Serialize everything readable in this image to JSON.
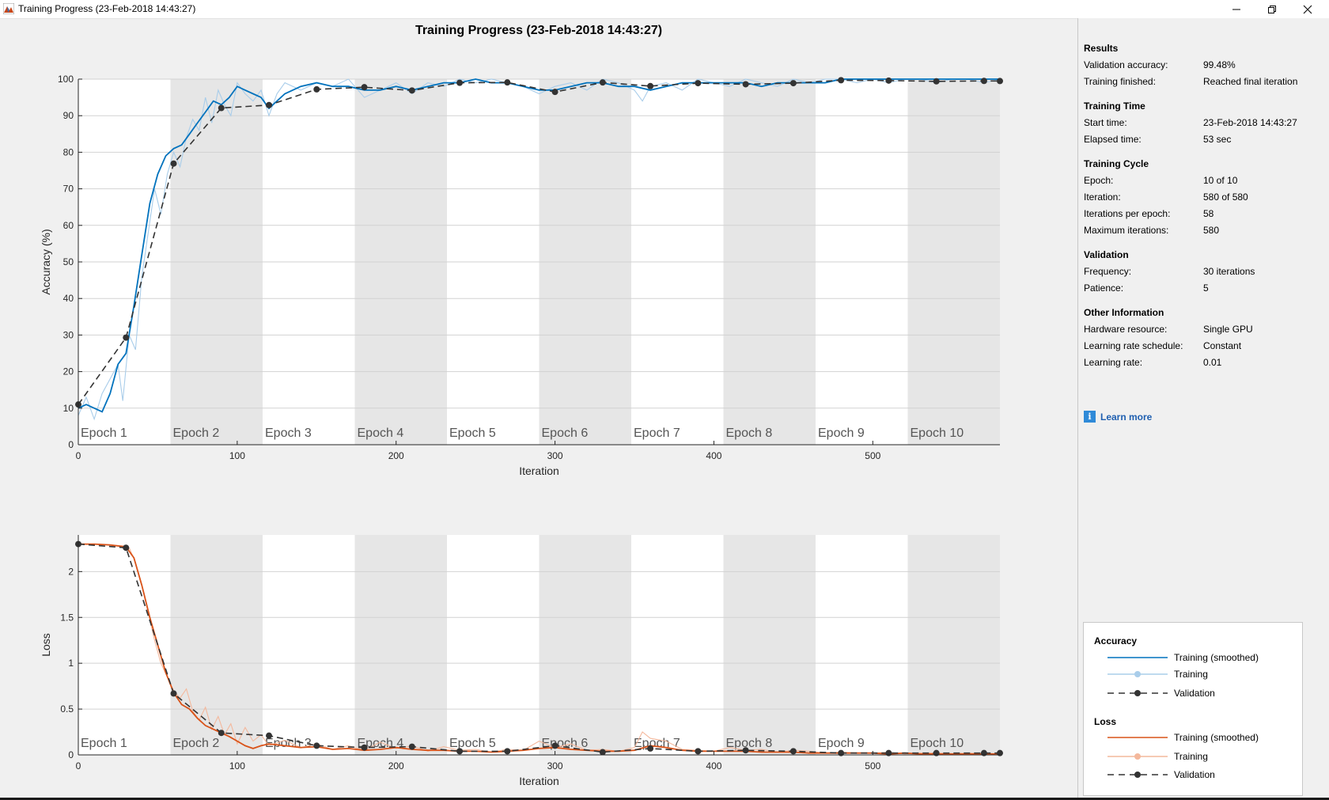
{
  "window": {
    "title": "Training Progress (23-Feb-2018 14:43:27)",
    "minimize_icon": "minimize-icon",
    "maximize_icon": "restore-icon",
    "close_icon": "close-icon"
  },
  "plot": {
    "title": "Training Progress (23-Feb-2018 14:43:27)"
  },
  "chart_data": [
    {
      "type": "line",
      "name": "accuracy",
      "title": "",
      "xlabel": "Iteration",
      "ylabel": "Accuracy (%)",
      "xlim": [
        0,
        580
      ],
      "ylim": [
        0,
        100
      ],
      "xticks": [
        0,
        100,
        200,
        300,
        400,
        500
      ],
      "yticks": [
        0,
        10,
        20,
        30,
        40,
        50,
        60,
        70,
        80,
        90,
        100
      ],
      "grid": true,
      "epoch_length": 58,
      "epoch_labels": [
        "Epoch 1",
        "Epoch 2",
        "Epoch 3",
        "Epoch 4",
        "Epoch 5",
        "Epoch 6",
        "Epoch 7",
        "Epoch 8",
        "Epoch 9",
        "Epoch 10"
      ],
      "series": [
        {
          "name": "Training",
          "style": "raw",
          "color": "#a9cdea",
          "x": [
            0,
            5,
            10,
            15,
            20,
            25,
            28,
            32,
            36,
            40,
            44,
            48,
            52,
            56,
            60,
            64,
            68,
            72,
            76,
            80,
            84,
            88,
            92,
            96,
            100,
            105,
            110,
            115,
            120,
            125,
            130,
            140,
            150,
            160,
            170,
            180,
            190,
            200,
            210,
            220,
            230,
            240,
            250,
            260,
            270,
            280,
            290,
            300,
            310,
            320,
            330,
            340,
            350,
            355,
            360,
            370,
            380,
            390,
            400,
            410,
            420,
            430,
            440,
            450,
            460,
            470,
            480,
            490,
            500,
            510,
            520,
            530,
            540,
            550,
            560,
            570,
            580
          ],
          "values": [
            8,
            13,
            7,
            14,
            18,
            22,
            12,
            30,
            26,
            46,
            58,
            70,
            63,
            74,
            80,
            76,
            84,
            89,
            86,
            95,
            88,
            97,
            93,
            90,
            99,
            96,
            94,
            97,
            90,
            96,
            99,
            97,
            99,
            98,
            100,
            95,
            97,
            99,
            96,
            99,
            98,
            100,
            99,
            100,
            99,
            98,
            96,
            98,
            99,
            97,
            100,
            99,
            97,
            94,
            98,
            99,
            97,
            100,
            99,
            98,
            100,
            99,
            98,
            100,
            99,
            100,
            100,
            99,
            100,
            99,
            100,
            100,
            99,
            100,
            100,
            99,
            100
          ]
        },
        {
          "name": "Training (smoothed)",
          "style": "smoothed",
          "color": "#0072bd",
          "x": [
            0,
            5,
            10,
            15,
            20,
            25,
            30,
            35,
            40,
            45,
            50,
            55,
            60,
            65,
            70,
            75,
            80,
            85,
            90,
            95,
            100,
            105,
            110,
            115,
            120,
            130,
            140,
            150,
            160,
            170,
            180,
            190,
            200,
            210,
            220,
            230,
            240,
            250,
            260,
            270,
            280,
            290,
            300,
            310,
            320,
            330,
            340,
            350,
            360,
            370,
            380,
            390,
            400,
            410,
            420,
            430,
            440,
            450,
            460,
            470,
            480,
            490,
            500,
            510,
            520,
            530,
            540,
            550,
            560,
            570,
            580
          ],
          "values": [
            10,
            11,
            10,
            9,
            14,
            22,
            25,
            38,
            52,
            66,
            74,
            79,
            81,
            82,
            85,
            88,
            91,
            94,
            93,
            95,
            98,
            97,
            96,
            95,
            92,
            96,
            98,
            99,
            98,
            98,
            97,
            97,
            98,
            97,
            98,
            99,
            99,
            100,
            99,
            99,
            98,
            97,
            97,
            98,
            99,
            99,
            98,
            98,
            97,
            98,
            99,
            99,
            99,
            99,
            99,
            98,
            99,
            99,
            99,
            99,
            100,
            100,
            100,
            100,
            100,
            100,
            100,
            100,
            100,
            100,
            100
          ]
        },
        {
          "name": "Validation",
          "style": "validation",
          "color": "#333333",
          "x": [
            0,
            30,
            60,
            90,
            120,
            150,
            180,
            210,
            240,
            270,
            300,
            330,
            360,
            390,
            420,
            450,
            480,
            510,
            540,
            570,
            580
          ],
          "values": [
            11,
            29.3,
            76.9,
            92.1,
            92.9,
            97.2,
            97.8,
            96.9,
            99.0,
            99.1,
            96.5,
            99.1,
            98.1,
            98.9,
            98.6,
            98.9,
            99.7,
            99.6,
            99.4,
            99.5,
            99.48
          ]
        }
      ]
    },
    {
      "type": "line",
      "name": "loss",
      "title": "",
      "xlabel": "Iteration",
      "ylabel": "Loss",
      "xlim": [
        0,
        580
      ],
      "ylim": [
        0,
        2.4
      ],
      "xticks": [
        0,
        100,
        200,
        300,
        400,
        500
      ],
      "yticks": [
        0,
        0.5,
        1,
        1.5,
        2
      ],
      "grid": true,
      "epoch_length": 58,
      "epoch_labels": [
        "Epoch 1",
        "Epoch 2",
        "Epoch 3",
        "Epoch 4",
        "Epoch 5",
        "Epoch 6",
        "Epoch 7",
        "Epoch 8",
        "Epoch 9",
        "Epoch 10"
      ],
      "series": [
        {
          "name": "Training",
          "style": "raw",
          "color": "#f4b89c",
          "x": [
            0,
            10,
            20,
            28,
            32,
            36,
            40,
            44,
            48,
            52,
            56,
            60,
            64,
            68,
            72,
            76,
            80,
            84,
            88,
            92,
            96,
            100,
            105,
            110,
            115,
            120,
            130,
            140,
            150,
            160,
            170,
            180,
            190,
            200,
            210,
            220,
            230,
            240,
            250,
            260,
            270,
            280,
            290,
            300,
            310,
            320,
            330,
            340,
            350,
            355,
            360,
            370,
            380,
            390,
            400,
            410,
            420,
            430,
            440,
            450,
            460,
            470,
            480,
            490,
            500,
            510,
            520,
            530,
            540,
            550,
            560,
            570,
            580
          ],
          "values": [
            2.3,
            2.3,
            2.29,
            2.28,
            2.26,
            2.1,
            1.85,
            1.55,
            1.25,
            1.0,
            0.85,
            0.7,
            0.62,
            0.72,
            0.48,
            0.38,
            0.52,
            0.28,
            0.42,
            0.22,
            0.34,
            0.12,
            0.3,
            0.15,
            0.22,
            0.1,
            0.16,
            0.08,
            0.12,
            0.06,
            0.1,
            0.05,
            0.14,
            0.07,
            0.1,
            0.04,
            0.09,
            0.05,
            0.06,
            0.03,
            0.06,
            0.05,
            0.15,
            0.08,
            0.12,
            0.05,
            0.06,
            0.04,
            0.08,
            0.25,
            0.18,
            0.15,
            0.06,
            0.05,
            0.04,
            0.08,
            0.05,
            0.06,
            0.03,
            0.05,
            0.04,
            0.02,
            0.03,
            0.02,
            0.02,
            0.03,
            0.01,
            0.02,
            0.02,
            0.01,
            0.02,
            0.01,
            0.01
          ]
        },
        {
          "name": "Training (smoothed)",
          "style": "smoothed",
          "color": "#d95319",
          "x": [
            0,
            10,
            20,
            30,
            35,
            40,
            45,
            50,
            55,
            60,
            65,
            70,
            75,
            80,
            85,
            90,
            95,
            100,
            105,
            110,
            115,
            120,
            130,
            140,
            150,
            160,
            170,
            180,
            190,
            200,
            210,
            220,
            230,
            240,
            250,
            260,
            270,
            280,
            290,
            300,
            310,
            320,
            330,
            340,
            350,
            360,
            370,
            380,
            390,
            400,
            410,
            420,
            430,
            440,
            450,
            460,
            470,
            480,
            490,
            500,
            510,
            520,
            530,
            540,
            550,
            560,
            570,
            580
          ],
          "values": [
            2.3,
            2.3,
            2.29,
            2.27,
            2.15,
            1.85,
            1.5,
            1.2,
            0.9,
            0.68,
            0.55,
            0.5,
            0.4,
            0.32,
            0.28,
            0.24,
            0.2,
            0.15,
            0.1,
            0.07,
            0.1,
            0.12,
            0.1,
            0.08,
            0.09,
            0.06,
            0.07,
            0.05,
            0.06,
            0.08,
            0.06,
            0.05,
            0.05,
            0.04,
            0.04,
            0.03,
            0.04,
            0.05,
            0.07,
            0.08,
            0.06,
            0.05,
            0.04,
            0.04,
            0.05,
            0.1,
            0.08,
            0.05,
            0.04,
            0.04,
            0.04,
            0.04,
            0.03,
            0.03,
            0.03,
            0.02,
            0.02,
            0.02,
            0.02,
            0.02,
            0.01,
            0.02,
            0.01,
            0.01,
            0.01,
            0.01,
            0.01,
            0.01
          ]
        },
        {
          "name": "Validation",
          "style": "validation",
          "color": "#333333",
          "x": [
            0,
            30,
            60,
            90,
            120,
            150,
            180,
            210,
            240,
            270,
            300,
            330,
            360,
            390,
            420,
            450,
            480,
            510,
            540,
            570,
            580
          ],
          "values": [
            2.3,
            2.26,
            0.67,
            0.24,
            0.21,
            0.1,
            0.08,
            0.09,
            0.04,
            0.04,
            0.1,
            0.03,
            0.07,
            0.04,
            0.05,
            0.04,
            0.02,
            0.02,
            0.02,
            0.02,
            0.02
          ]
        }
      ]
    }
  ],
  "results": {
    "heading": "Results",
    "validation_accuracy_label": "Validation accuracy:",
    "validation_accuracy_value": "99.48%",
    "training_finished_label": "Training finished:",
    "training_finished_value": "Reached final iteration"
  },
  "training_time": {
    "heading": "Training Time",
    "start_time_label": "Start time:",
    "start_time_value": "23-Feb-2018 14:43:27",
    "elapsed_time_label": "Elapsed time:",
    "elapsed_time_value": "53 sec"
  },
  "training_cycle": {
    "heading": "Training Cycle",
    "epoch_label": "Epoch:",
    "epoch_value": "10 of 10",
    "iteration_label": "Iteration:",
    "iteration_value": "580 of 580",
    "iterations_per_epoch_label": "Iterations per epoch:",
    "iterations_per_epoch_value": "58",
    "max_iterations_label": "Maximum iterations:",
    "max_iterations_value": "580"
  },
  "validation": {
    "heading": "Validation",
    "frequency_label": "Frequency:",
    "frequency_value": "30 iterations",
    "patience_label": "Patience:",
    "patience_value": "5"
  },
  "other_info": {
    "heading": "Other Information",
    "hardware_label": "Hardware resource:",
    "hardware_value": "Single GPU",
    "lr_schedule_label": "Learning rate schedule:",
    "lr_schedule_value": "Constant",
    "lr_label": "Learning rate:",
    "lr_value": "0.01"
  },
  "learn_more": {
    "icon": "info-icon",
    "label": "Learn more"
  },
  "legend": {
    "accuracy_heading": "Accuracy",
    "accuracy_smoothed": "Training (smoothed)",
    "accuracy_training": "Training",
    "accuracy_validation": "Validation",
    "loss_heading": "Loss",
    "loss_smoothed": "Training (smoothed)",
    "loss_training": "Training",
    "loss_validation": "Validation",
    "colors": {
      "accuracy_smoothed": "#0072bd",
      "accuracy_training": "#a9cdea",
      "loss_smoothed": "#d95319",
      "loss_training": "#f4b89c",
      "validation": "#333333"
    }
  }
}
